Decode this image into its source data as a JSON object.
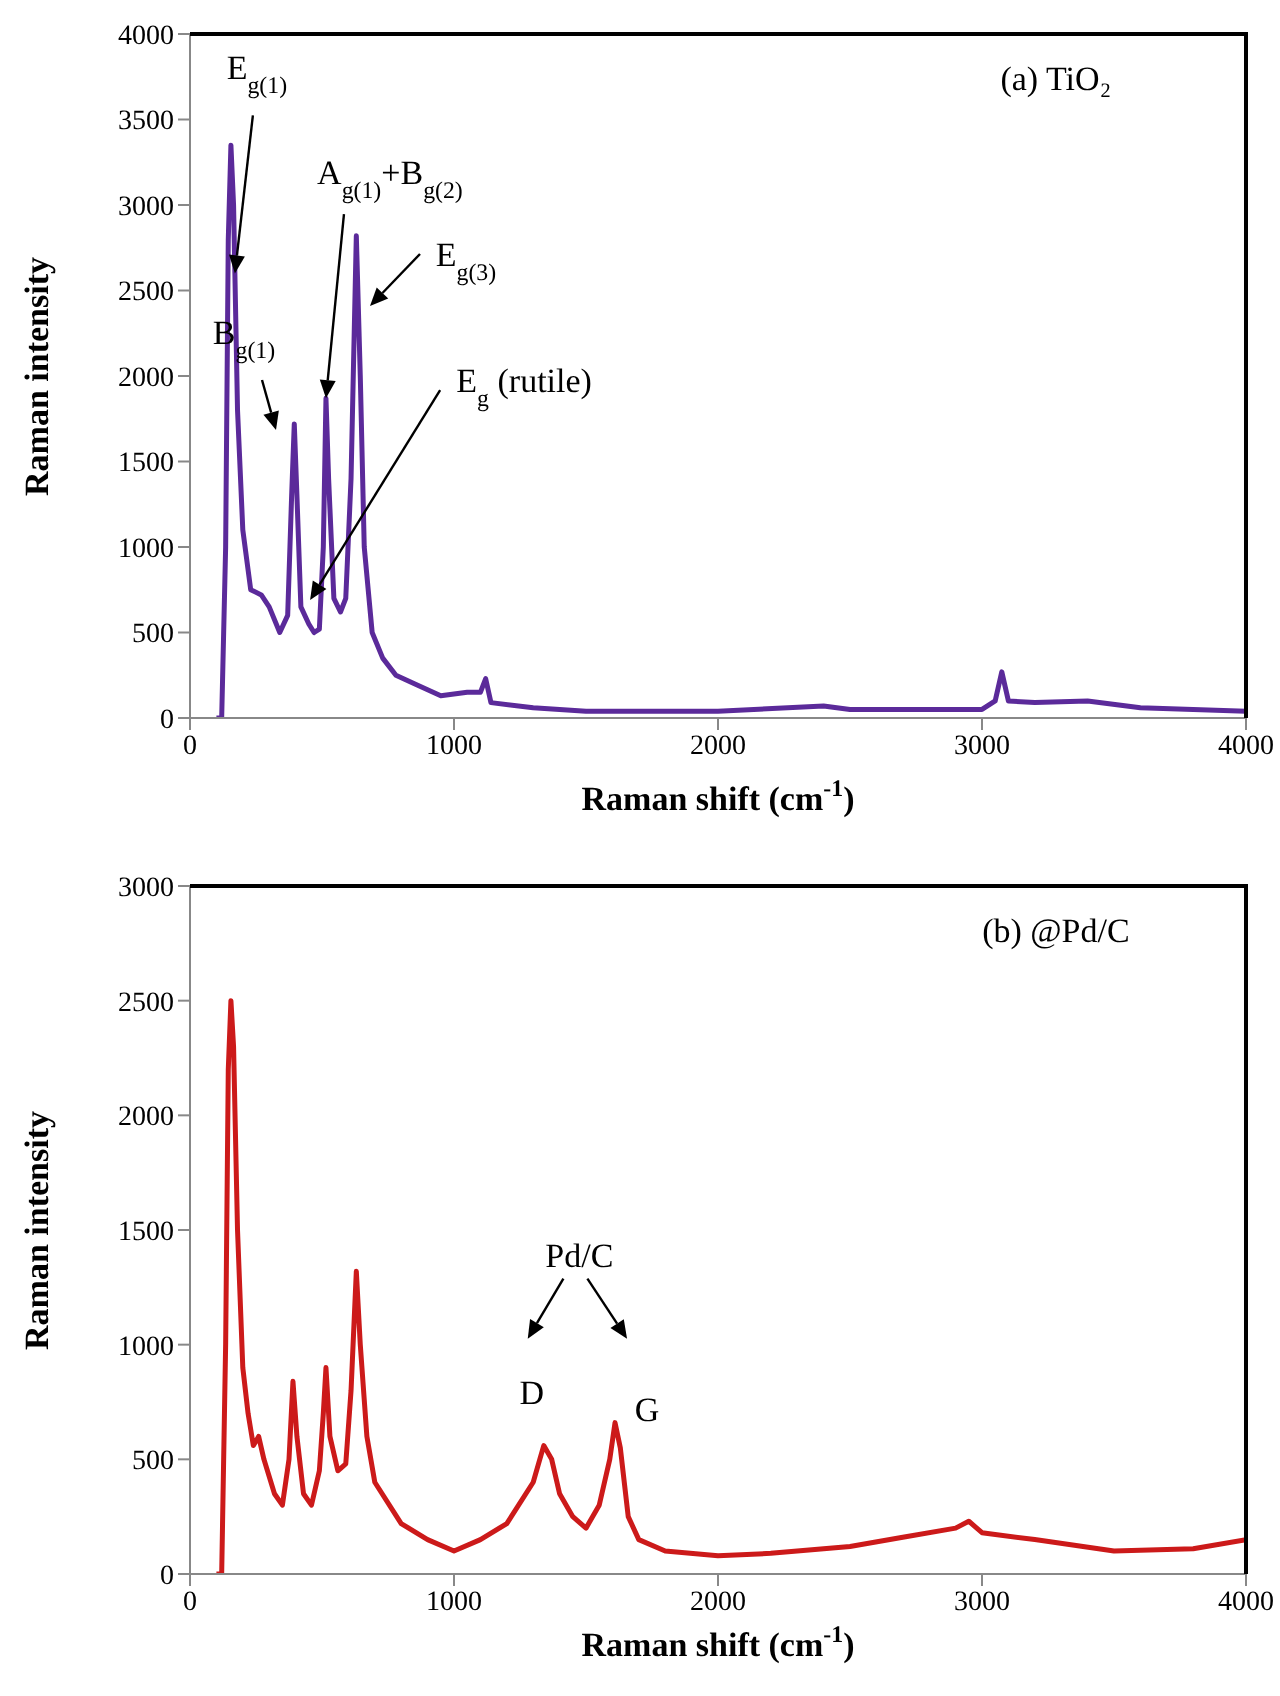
{
  "chart_data": [
    {
      "type": "line",
      "title": "(a) TiO₂",
      "xlabel": "Raman shift (cm$^{-1}$)",
      "ylabel": "Raman intensity",
      "xlim": [
        0,
        4000
      ],
      "xticks": [
        0,
        1000,
        2000,
        3000,
        4000
      ],
      "ylim": [
        0,
        4000
      ],
      "yticks": [
        0,
        500,
        1000,
        1500,
        2000,
        2500,
        3000,
        3500,
        4000
      ],
      "grid": false,
      "marker": "none",
      "series": [
        {
          "color": "#5b2a9a",
          "x": [
            100,
            120,
            135,
            145,
            155,
            165,
            180,
            200,
            230,
            270,
            300,
            340,
            370,
            385,
            395,
            405,
            420,
            450,
            470,
            490,
            505,
            515,
            525,
            545,
            570,
            590,
            610,
            630,
            645,
            660,
            690,
            730,
            780,
            850,
            950,
            1050,
            1100,
            1120,
            1140,
            1300,
            1500,
            2000,
            2400,
            2500,
            3000,
            3050,
            3075,
            3100,
            3200,
            3400,
            3600,
            4000
          ],
          "values": [
            0,
            0,
            1000,
            2800,
            3350,
            3000,
            1800,
            1100,
            750,
            720,
            650,
            500,
            600,
            1300,
            1720,
            1300,
            650,
            550,
            500,
            520,
            1000,
            1870,
            1400,
            700,
            620,
            700,
            1400,
            2820,
            2000,
            1000,
            500,
            350,
            250,
            200,
            130,
            150,
            150,
            230,
            90,
            60,
            40,
            40,
            70,
            50,
            50,
            100,
            270,
            100,
            90,
            100,
            60,
            40
          ]
        }
      ],
      "annotations": [
        {
          "text": "E$_{g(1)}$",
          "x": 170,
          "y": 2600
        },
        {
          "text": "A$_{g(1)}$+B$_{g(2)}$",
          "x": 515,
          "y": 1870
        },
        "E$_{g(3)}$",
        "B$_{g(1)}$",
        {
          "text": "E$_{g}$ (rutile)",
          "x": 455,
          "y": 690
        }
      ]
    },
    {
      "type": "line",
      "title": "(b) @Pd/C",
      "xlabel": "Raman shift (cm$^{-1}$)",
      "ylabel": "Raman intensity",
      "xlim": [
        0,
        4000
      ],
      "xticks": [
        0,
        1000,
        2000,
        3000,
        4000
      ],
      "ylim": [
        0,
        3000
      ],
      "yticks": [
        0,
        500,
        1000,
        1500,
        2000,
        2500,
        3000
      ],
      "grid": false,
      "marker": "none",
      "series": [
        {
          "color": "#cc1a1a",
          "x": [
            100,
            120,
            135,
            145,
            155,
            165,
            180,
            200,
            220,
            240,
            260,
            280,
            320,
            350,
            375,
            390,
            405,
            430,
            460,
            490,
            505,
            515,
            530,
            560,
            590,
            610,
            630,
            645,
            670,
            700,
            800,
            900,
            1000,
            1100,
            1200,
            1300,
            1340,
            1370,
            1400,
            1450,
            1500,
            1550,
            1590,
            1610,
            1630,
            1660,
            1700,
            1800,
            2000,
            2200,
            2500,
            2700,
            2900,
            2950,
            3000,
            3200,
            3500,
            3800,
            4000
          ],
          "values": [
            0,
            0,
            1000,
            2200,
            2500,
            2300,
            1500,
            900,
            700,
            560,
            600,
            500,
            350,
            300,
            500,
            840,
            600,
            350,
            300,
            450,
            700,
            900,
            600,
            450,
            480,
            800,
            1320,
            1000,
            600,
            400,
            220,
            150,
            100,
            150,
            220,
            400,
            560,
            500,
            350,
            250,
            200,
            300,
            500,
            660,
            550,
            250,
            150,
            100,
            80,
            90,
            120,
            160,
            200,
            230,
            180,
            150,
            100,
            110,
            150
          ]
        }
      ],
      "annotations": [
        {
          "text": "D",
          "x": 1340,
          "y": 560
        },
        {
          "text": "G",
          "x": 1610,
          "y": 660
        },
        "Pd/C"
      ]
    }
  ]
}
